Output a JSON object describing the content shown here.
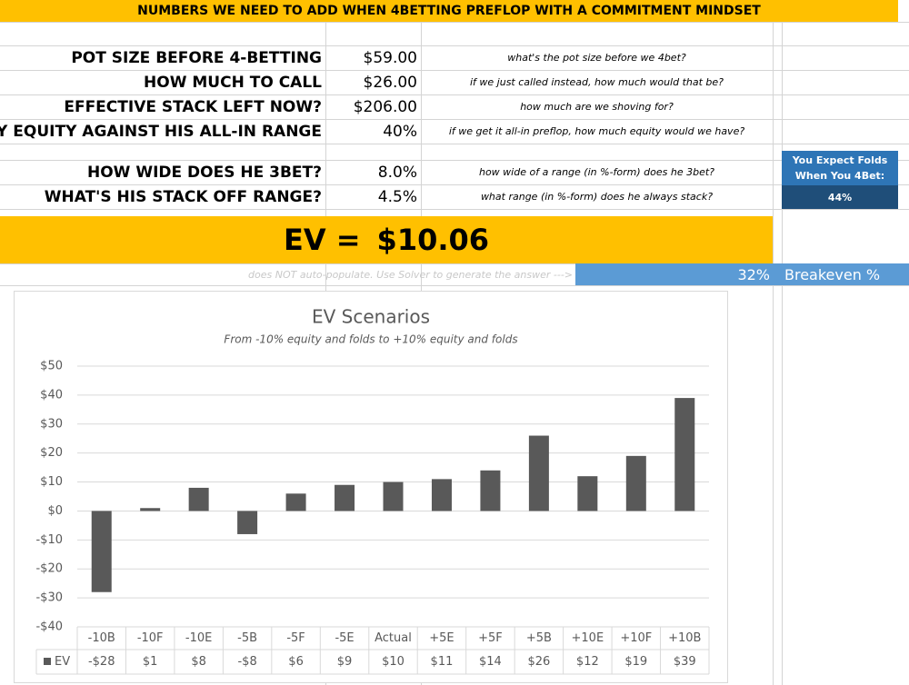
{
  "sheet": {
    "banner": "NUMBERS WE NEED TO ADD WHEN 4BETTING PREFLOP WITH A COMMITMENT MINDSET",
    "inputs": [
      {
        "label": "POT SIZE BEFORE 4-BETTING",
        "value": "$59.00",
        "note": "what's the pot size before we 4bet?"
      },
      {
        "label": "HOW MUCH TO CALL",
        "value": "$26.00",
        "note": "if we just called instead, how much would that be?"
      },
      {
        "label": "EFFECTIVE STACK LEFT NOW?",
        "value": "$206.00",
        "note": "how much are we shoving for?"
      },
      {
        "label": "MY EQUITY AGAINST HIS ALL-IN RANGE",
        "value": "40%",
        "note": "if we get it all-in preflop, how much equity would we have?"
      }
    ],
    "range_inputs": [
      {
        "label": "HOW WIDE DOES HE 3BET?",
        "value": "8.0%",
        "note": "how wide of a range (in %-form) does he 3bet?"
      },
      {
        "label": "WHAT'S HIS STACK OFF RANGE?",
        "value": "4.5%",
        "note": "what range (in %-form) does he always stack?"
      }
    ],
    "folds_box": {
      "title": "You Expect Folds When You 4Bet:",
      "value": "44%"
    },
    "ev_label": "EV =",
    "ev_value": "$10.06",
    "solver_note": "does NOT auto-populate. Use Solver to generate the answer --->",
    "breakeven_value": "32%",
    "breakeven_label": "Breakeven %"
  },
  "chart_data": {
    "type": "bar",
    "title": "EV Scenarios",
    "subtitle": "From -10% equity and folds to +10% equity and folds",
    "categories": [
      "-10B",
      "-10F",
      "-10E",
      "-5B",
      "-5F",
      "-5E",
      "Actual",
      "+5E",
      "+5F",
      "+5B",
      "+10E",
      "+10F",
      "+10B"
    ],
    "series": [
      {
        "name": "EV",
        "color": "#595959",
        "values": [
          -28,
          1,
          8,
          -8,
          6,
          9,
          10,
          11,
          14,
          26,
          12,
          19,
          39
        ],
        "value_labels": [
          "-$28",
          "$1",
          "$8",
          "-$8",
          "$6",
          "$9",
          "$10",
          "$11",
          "$14",
          "$26",
          "$12",
          "$19",
          "$39"
        ]
      }
    ],
    "ylim": [
      -40,
      50
    ],
    "yticks": [
      {
        "value": -40,
        "label": "-$40"
      },
      {
        "value": -30,
        "label": "-$30"
      },
      {
        "value": -20,
        "label": "-$20"
      },
      {
        "value": -10,
        "label": "-$10"
      },
      {
        "value": 0,
        "label": "$0"
      },
      {
        "value": 10,
        "label": "$10"
      },
      {
        "value": 20,
        "label": "$20"
      },
      {
        "value": 30,
        "label": "$30"
      },
      {
        "value": 40,
        "label": "$40"
      },
      {
        "value": 50,
        "label": "$50"
      }
    ],
    "grid": true
  }
}
